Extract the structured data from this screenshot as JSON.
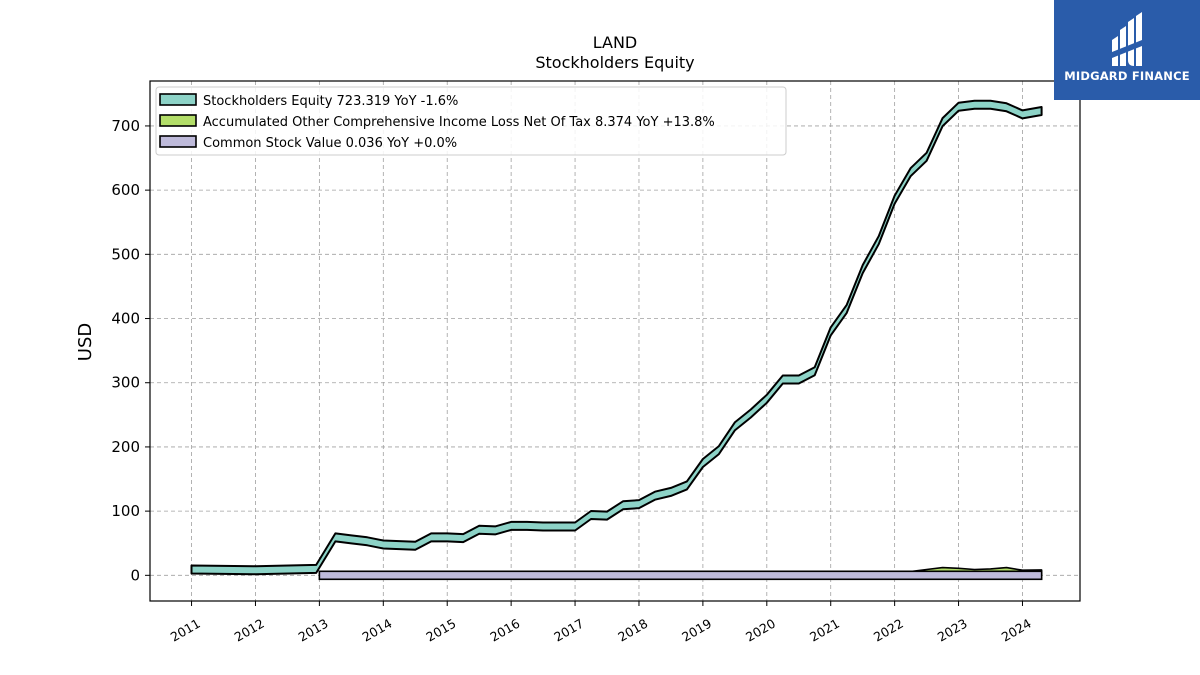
{
  "chart_data": {
    "type": "area",
    "title": "LAND",
    "subtitle": "Stockholders  Equity",
    "ylabel": "USD",
    "xlabel": "",
    "ylim": [
      -40,
      770
    ],
    "xlim": [
      2010.35,
      2024.9
    ],
    "y_ticks": [
      0,
      100,
      200,
      300,
      400,
      500,
      600,
      700
    ],
    "x_ticks": [
      "2011",
      "2012",
      "2013",
      "2014",
      "2015",
      "2016",
      "2017",
      "2018",
      "2019",
      "2020",
      "2021",
      "2022",
      "2023",
      "2024"
    ],
    "grid": true,
    "legend_position": "top-left",
    "series": [
      {
        "name": "Stockholders Equity",
        "legend": "Stockholders Equity  723.319 YoY -1.6%",
        "color": "#8dd3c7",
        "x": [
          2011.0,
          2012.0,
          2012.95,
          2013.25,
          2013.5,
          2013.75,
          2014.0,
          2014.25,
          2014.5,
          2014.75,
          2015.0,
          2015.25,
          2015.5,
          2015.75,
          2016.0,
          2016.25,
          2016.5,
          2016.75,
          2017.0,
          2017.25,
          2017.5,
          2017.75,
          2018.0,
          2018.25,
          2018.5,
          2018.75,
          2019.0,
          2019.25,
          2019.5,
          2019.75,
          2020.0,
          2020.25,
          2020.5,
          2020.75,
          2021.0,
          2021.25,
          2021.5,
          2021.75,
          2022.0,
          2022.25,
          2022.5,
          2022.75,
          2023.0,
          2023.25,
          2023.5,
          2023.75,
          2024.0,
          2024.3
        ],
        "values": [
          9,
          8,
          10,
          59,
          56,
          53,
          48,
          47,
          46,
          59,
          59,
          58,
          71,
          70,
          77,
          77,
          76,
          76,
          76,
          94,
          93,
          109,
          111,
          124,
          130,
          140,
          175,
          195,
          232,
          252,
          275,
          305,
          305,
          318,
          380,
          415,
          477,
          522,
          585,
          628,
          652,
          706,
          730,
          733,
          733,
          729,
          718,
          723.319
        ]
      },
      {
        "name": "Accumulated Other Comprehensive Income Loss Net Of Tax",
        "legend": "Accumulated Other Comprehensive Income Loss Net Of Tax  8.374 YoY +13.8%",
        "color": "#b3de69",
        "x": [
          2013.0,
          2019.75,
          2020.0,
          2020.5,
          2021.0,
          2021.5,
          2022.0,
          2022.25,
          2022.5,
          2022.75,
          2023.0,
          2023.25,
          2023.5,
          2023.75,
          2024.0,
          2024.3
        ],
        "values": [
          0,
          0,
          -1,
          -2,
          -2,
          -1,
          0,
          6,
          9,
          12,
          11,
          9,
          10,
          12,
          8,
          8.374
        ]
      },
      {
        "name": "Common Stock Value",
        "legend": "Common Stock Value  0.036 YoY +0.0%",
        "color": "#bebada",
        "x": [
          2013.0,
          2024.3
        ],
        "values": [
          0.036,
          0.036
        ]
      }
    ]
  },
  "logo": {
    "text": "MIDGARD FINANCE",
    "background": "#2a5caa"
  }
}
